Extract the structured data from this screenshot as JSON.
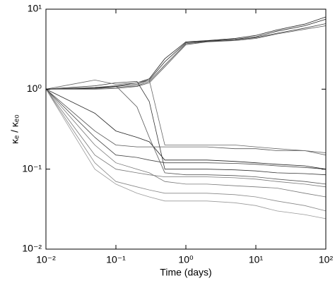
{
  "chart_data": {
    "type": "line",
    "xlabel": "Time (days)",
    "ylabel": "κₑ / κₑ₀",
    "xscale": "log",
    "yscale": "log",
    "xlim": [
      0.01,
      100
    ],
    "ylim": [
      0.01,
      10
    ],
    "xticks": [
      {
        "value": 0.01,
        "label": "10⁻²"
      },
      {
        "value": 0.1,
        "label": "10⁻¹"
      },
      {
        "value": 1,
        "label": "10⁰"
      },
      {
        "value": 10,
        "label": "10¹"
      },
      {
        "value": 100,
        "label": "10²"
      }
    ],
    "yticks": [
      {
        "value": 0.01,
        "label": "10⁻²"
      },
      {
        "value": 0.1,
        "label": "10⁻¹"
      },
      {
        "value": 1,
        "label": "10⁰"
      },
      {
        "value": 10,
        "label": "10¹"
      }
    ],
    "x": [
      0.01,
      0.05,
      0.1,
      0.2,
      0.3,
      0.5,
      1,
      2,
      5,
      10,
      20,
      50,
      100
    ],
    "series": [
      {
        "color": "#222222",
        "values": [
          1,
          1.03,
          1.08,
          1.15,
          1.3,
          2.2,
          3.8,
          4.0,
          4.2,
          4.5,
          5.3,
          6.2,
          7.5
        ]
      },
      {
        "color": "#444444",
        "values": [
          1,
          1.02,
          1.05,
          1.1,
          1.25,
          2.0,
          3.7,
          3.95,
          4.1,
          4.4,
          5.0,
          5.8,
          6.6
        ]
      },
      {
        "color": "#222222",
        "values": [
          1,
          1.04,
          1.1,
          1.2,
          1.35,
          2.4,
          3.9,
          4.05,
          4.3,
          4.7,
          5.5,
          6.5,
          8.0
        ]
      },
      {
        "color": "#555555",
        "values": [
          1,
          1.0,
          1.02,
          1.08,
          1.2,
          1.9,
          3.6,
          3.9,
          4.05,
          4.3,
          4.9,
          5.6,
          6.2
        ]
      },
      {
        "color": "#555555",
        "values": [
          1,
          0.3,
          0.2,
          0.19,
          0.19,
          0.19,
          0.19,
          0.19,
          0.18,
          0.18,
          0.17,
          0.17,
          0.16
        ]
      },
      {
        "color": "#777777",
        "values": [
          1,
          0.15,
          0.1,
          0.09,
          0.085,
          0.08,
          0.08,
          0.08,
          0.078,
          0.075,
          0.07,
          0.065,
          0.06
        ]
      },
      {
        "color": "#888888",
        "values": [
          1,
          0.12,
          0.07,
          0.06,
          0.055,
          0.05,
          0.05,
          0.05,
          0.048,
          0.045,
          0.04,
          0.035,
          0.03
        ]
      },
      {
        "color": "#222222",
        "values": [
          1,
          0.5,
          0.3,
          0.25,
          0.22,
          0.13,
          0.13,
          0.13,
          0.125,
          0.12,
          0.115,
          0.11,
          0.1
        ]
      },
      {
        "color": "#333333",
        "values": [
          1,
          1.1,
          1.2,
          1.25,
          0.7,
          0.1,
          0.1,
          0.1,
          0.098,
          0.095,
          0.09,
          0.088,
          0.085
        ]
      },
      {
        "color": "#666666",
        "values": [
          1,
          1.3,
          1.15,
          1.2,
          1.3,
          0.2,
          0.2,
          0.2,
          0.2,
          0.19,
          0.18,
          0.17,
          0.15
        ]
      },
      {
        "color": "#777777",
        "values": [
          1,
          0.2,
          0.12,
          0.1,
          0.09,
          0.07,
          0.065,
          0.065,
          0.062,
          0.06,
          0.058,
          0.05,
          0.045
        ]
      },
      {
        "color": "#444444",
        "values": [
          1,
          0.25,
          0.15,
          0.14,
          0.13,
          0.12,
          0.12,
          0.12,
          0.118,
          0.115,
          0.11,
          0.105,
          0.1
        ]
      },
      {
        "color": "#999999",
        "values": [
          1,
          0.1,
          0.065,
          0.05,
          0.045,
          0.04,
          0.04,
          0.04,
          0.038,
          0.035,
          0.03,
          0.027,
          0.024
        ]
      },
      {
        "color": "#555555",
        "values": [
          1,
          1.05,
          1.1,
          0.6,
          0.25,
          0.09,
          0.085,
          0.085,
          0.083,
          0.08,
          0.075,
          0.07,
          0.065
        ]
      }
    ]
  }
}
